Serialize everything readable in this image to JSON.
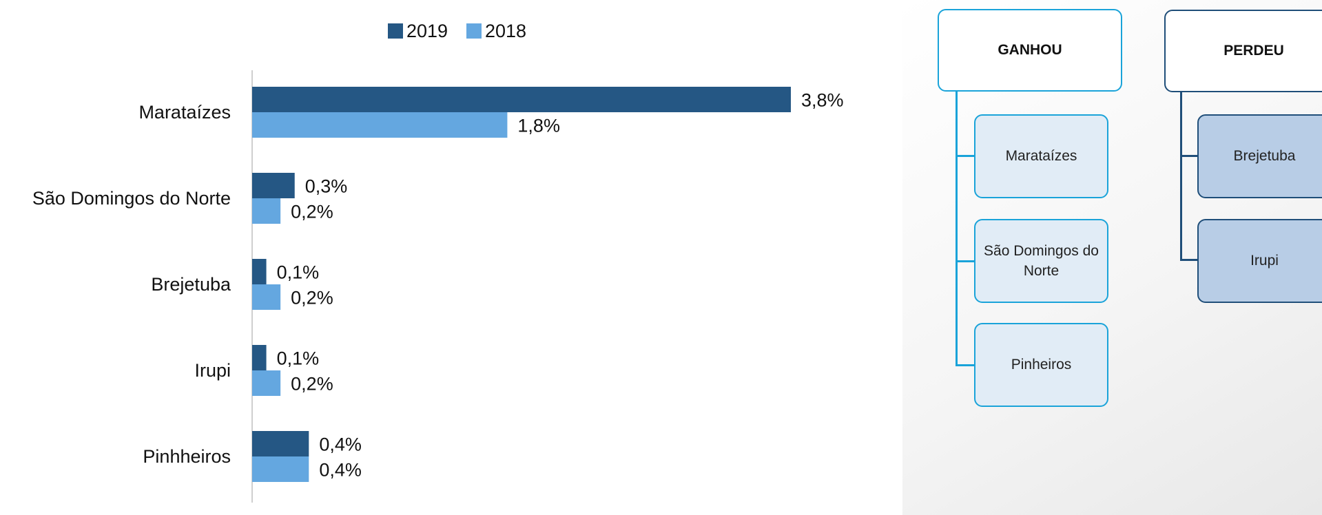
{
  "chart_data": {
    "type": "bar",
    "orientation": "horizontal",
    "categories": [
      "Marataízes",
      "São Domingos do Norte",
      "Brejetuba",
      "Irupi",
      "Pinhheiros"
    ],
    "series": [
      {
        "name": "2019",
        "color": "#255784",
        "values": [
          3.8,
          0.3,
          0.1,
          0.1,
          0.4
        ],
        "labels": [
          "3,8%",
          "0,3%",
          "0,1%",
          "0,1%",
          "0,4%"
        ]
      },
      {
        "name": "2018",
        "color": "#64a7e0",
        "values": [
          1.8,
          0.2,
          0.2,
          0.2,
          0.4
        ],
        "labels": [
          "1,8%",
          "0,2%",
          "0,2%",
          "0,2%",
          "0,4%"
        ]
      }
    ],
    "legend_position": "top",
    "xlim": [
      0,
      3.8
    ],
    "grid": false
  },
  "org": {
    "ganhou": {
      "title": "GANHOU",
      "border_color": "#19a3d9",
      "items": [
        "Marataízes",
        "São Domingos do Norte",
        "Pinheiros"
      ]
    },
    "perdeu": {
      "title": "PERDEU",
      "border_color": "#1f4e79",
      "items": [
        "Brejetuba",
        "Irupi"
      ]
    }
  }
}
